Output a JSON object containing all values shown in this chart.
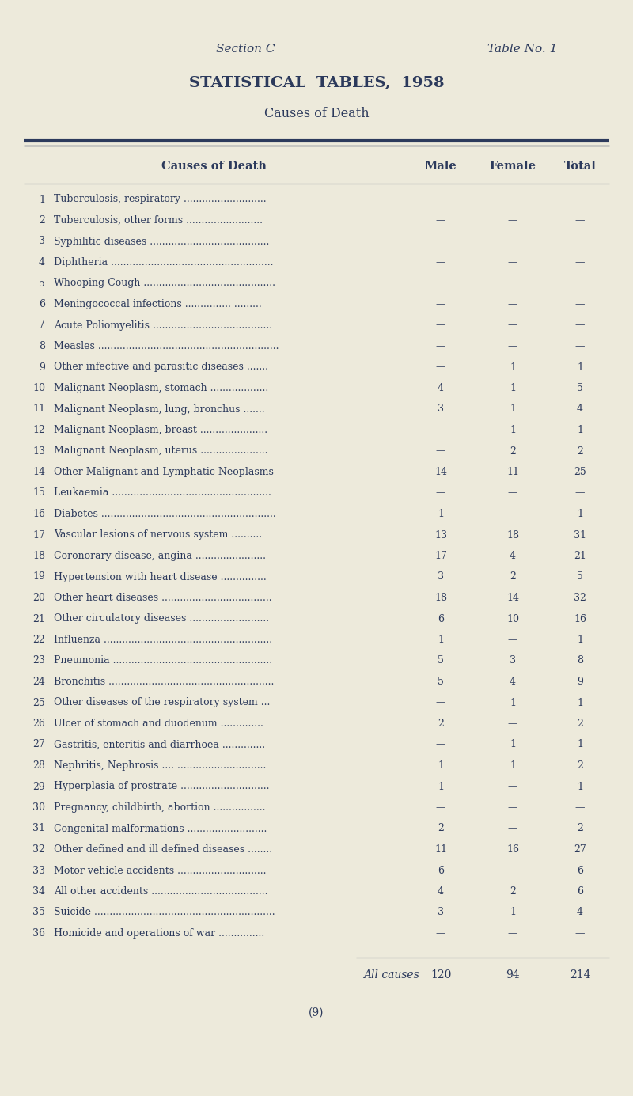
{
  "section_left": "Section C",
  "section_right": "Table No. 1",
  "title1": "STATISTICAL  TABLES,  1958",
  "title2": "Causes of Death",
  "col_headers": [
    "Causes of Death",
    "Male",
    "Female",
    "Total"
  ],
  "bg_color": "#edeadb",
  "text_color": "#2c3a5c",
  "rows": [
    {
      "num": "1",
      "cause": "Tuberculosis, respiratory ...........................",
      "male": "—",
      "female": "—",
      "total": "—"
    },
    {
      "num": "2",
      "cause": "Tuberculosis, other forms .........................",
      "male": "—",
      "female": "—",
      "total": "—"
    },
    {
      "num": "3",
      "cause": "Syphilitic diseases .......................................",
      "male": "—",
      "female": "—",
      "total": "—"
    },
    {
      "num": "4",
      "cause": "Diphtheria .....................................................",
      "male": "—",
      "female": "—",
      "total": "—"
    },
    {
      "num": "5",
      "cause": "Whooping Cough ...........................................",
      "male": "—",
      "female": "—",
      "total": "—"
    },
    {
      "num": "6",
      "cause": "Meningococcal infections ............... .........",
      "male": "—",
      "female": "—",
      "total": "—"
    },
    {
      "num": "7",
      "cause": "Acute Poliomyelitis .......................................",
      "male": "—",
      "female": "—",
      "total": "—"
    },
    {
      "num": "8",
      "cause": "Measles ...........................................................",
      "male": "—",
      "female": "—",
      "total": "—"
    },
    {
      "num": "9",
      "cause": "Other infective and parasitic diseases .......",
      "male": "—",
      "female": "1",
      "total": "1"
    },
    {
      "num": "10",
      "cause": "Malignant Neoplasm, stomach ...................",
      "male": "4",
      "female": "1",
      "total": "5"
    },
    {
      "num": "11",
      "cause": "Malignant Neoplasm, lung, bronchus .......",
      "male": "3",
      "female": "1",
      "total": "4"
    },
    {
      "num": "12",
      "cause": "Malignant Neoplasm, breast ......................",
      "male": "—",
      "female": "1",
      "total": "1"
    },
    {
      "num": "13",
      "cause": "Malignant Neoplasm, uterus ......................",
      "male": "—",
      "female": "2",
      "total": "2"
    },
    {
      "num": "14",
      "cause": "Other Malignant and Lymphatic Neoplasms",
      "male": "14",
      "female": "11",
      "total": "25"
    },
    {
      "num": "15",
      "cause": "Leukaemia ....................................................",
      "male": "—",
      "female": "—",
      "total": "—"
    },
    {
      "num": "16",
      "cause": "Diabetes .........................................................",
      "male": "1",
      "female": "—",
      "total": "1"
    },
    {
      "num": "17",
      "cause": "Vascular lesions of nervous system ..........",
      "male": "13",
      "female": "18",
      "total": "31"
    },
    {
      "num": "18",
      "cause": "Coronorary disease, angina .......................",
      "male": "17",
      "female": "4",
      "total": "21"
    },
    {
      "num": "19",
      "cause": "Hypertension with heart disease ...............",
      "male": "3",
      "female": "2",
      "total": "5"
    },
    {
      "num": "20",
      "cause": "Other heart diseases ....................................",
      "male": "18",
      "female": "14",
      "total": "32"
    },
    {
      "num": "21",
      "cause": "Other circulatory diseases ..........................",
      "male": "6",
      "female": "10",
      "total": "16"
    },
    {
      "num": "22",
      "cause": "Influenza .......................................................",
      "male": "1",
      "female": "—",
      "total": "1"
    },
    {
      "num": "23",
      "cause": "Pneumonia ....................................................",
      "male": "5",
      "female": "3",
      "total": "8"
    },
    {
      "num": "24",
      "cause": "Bronchitis ......................................................",
      "male": "5",
      "female": "4",
      "total": "9"
    },
    {
      "num": "25",
      "cause": "Other diseases of the respiratory system ...",
      "male": "—",
      "female": "1",
      "total": "1"
    },
    {
      "num": "26",
      "cause": "Ulcer of stomach and duodenum ..............",
      "male": "2",
      "female": "—",
      "total": "2"
    },
    {
      "num": "27",
      "cause": "Gastritis, enteritis and diarrhoea ..............",
      "male": "—",
      "female": "1",
      "total": "1"
    },
    {
      "num": "28",
      "cause": "Nephritis, Nephrosis .... .............................",
      "male": "1",
      "female": "1",
      "total": "2"
    },
    {
      "num": "29",
      "cause": "Hyperplasia of prostrate .............................",
      "male": "1",
      "female": "—",
      "total": "1"
    },
    {
      "num": "30",
      "cause": "Pregnancy, childbirth, abortion .................",
      "male": "—",
      "female": "—",
      "total": "—"
    },
    {
      "num": "31",
      "cause": "Congenital malformations ..........................",
      "male": "2",
      "female": "—",
      "total": "2"
    },
    {
      "num": "32",
      "cause": "Other defined and ill defined diseases ........",
      "male": "11",
      "female": "16",
      "total": "27"
    },
    {
      "num": "33",
      "cause": "Motor vehicle accidents .............................",
      "male": "6",
      "female": "—",
      "total": "6"
    },
    {
      "num": "34",
      "cause": "All other accidents ......................................",
      "male": "4",
      "female": "2",
      "total": "6"
    },
    {
      "num": "35",
      "cause": "Suicide ...........................................................",
      "male": "3",
      "female": "1",
      "total": "4"
    },
    {
      "num": "36",
      "cause": "Homicide and operations of war ...............",
      "male": "—",
      "female": "—",
      "total": "—"
    }
  ],
  "footer_label": "All causes",
  "footer_male": "120",
  "footer_female": "94",
  "footer_total": "214",
  "page_num": "(9)",
  "figwidth": 8.0,
  "figheight": 13.85,
  "dpi": 100
}
